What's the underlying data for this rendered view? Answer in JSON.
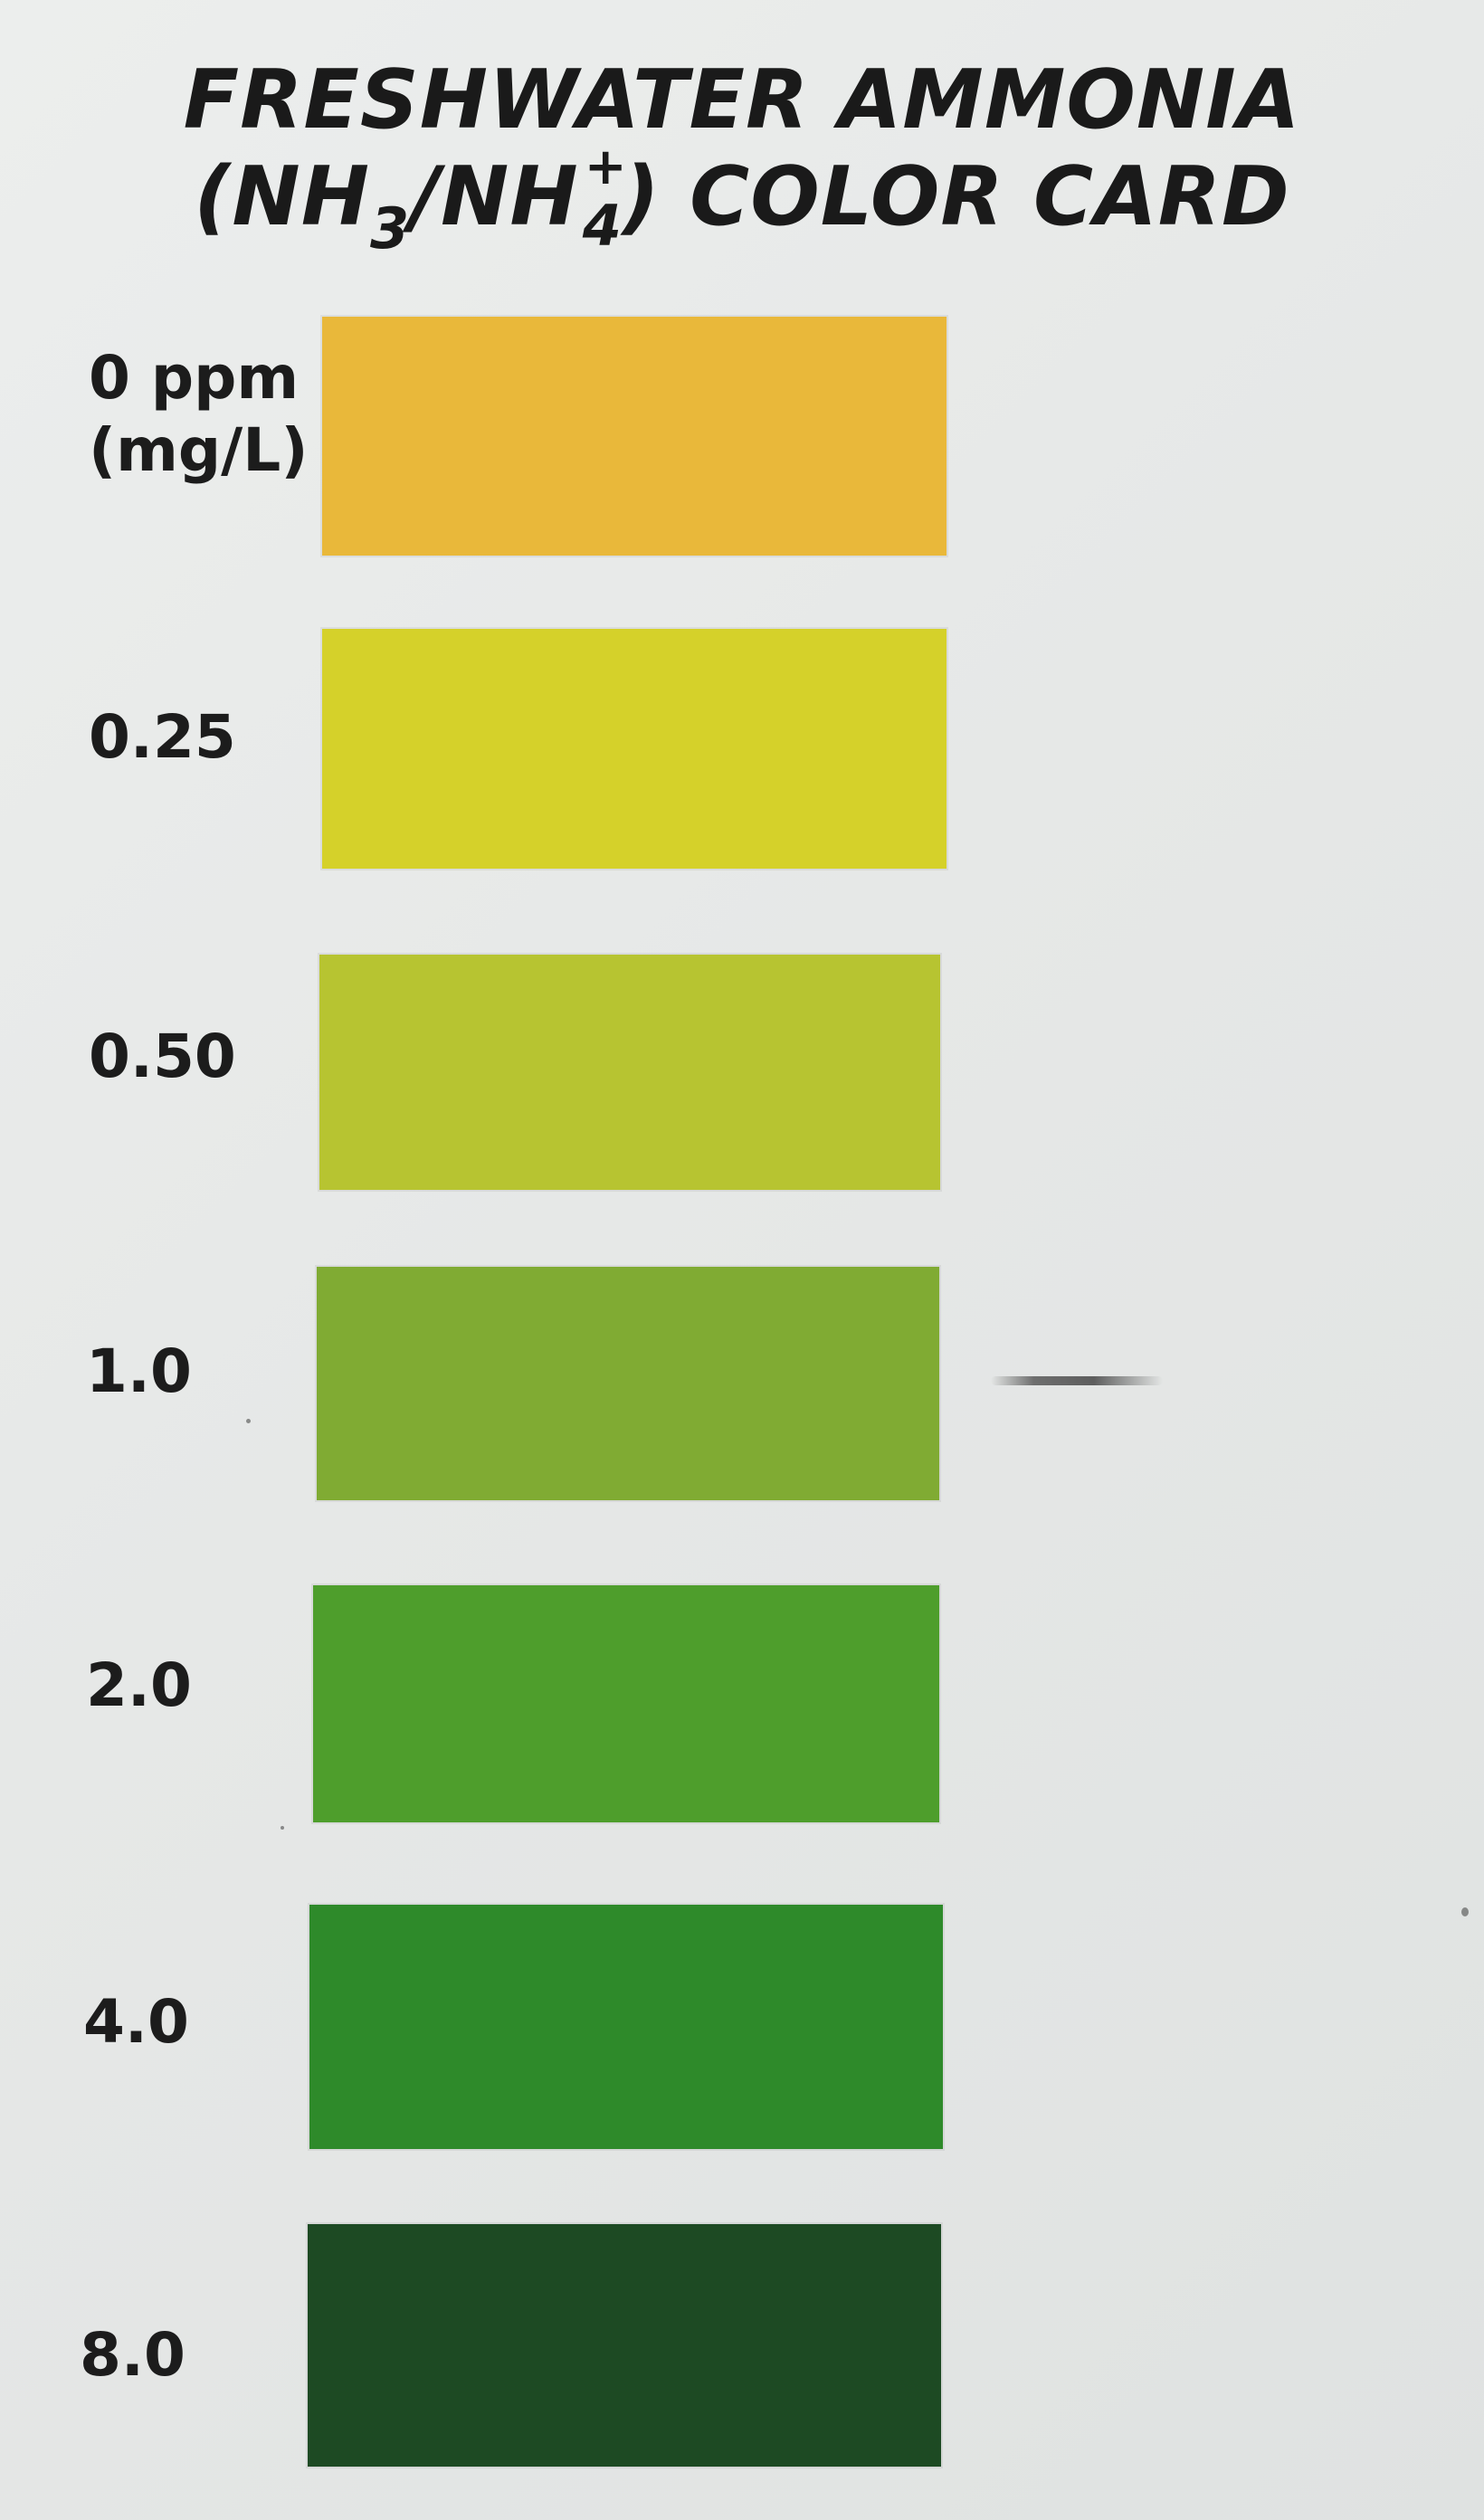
{
  "title": {
    "line1": "FRESHWATER AMMONIA",
    "line2": {
      "open": "(NH",
      "sub3": "3",
      "slash": "/NH",
      "charge": "+",
      "sub4": "4",
      "close": ") COLOR CARD"
    }
  },
  "scale": [
    {
      "label_line1": "0 ppm",
      "label_line2": "(mg/L)",
      "value_ppm": 0,
      "color": "#e9b83a"
    },
    {
      "label_line1": "0.25",
      "label_line2": "",
      "value_ppm": 0.25,
      "color": "#d5d12a"
    },
    {
      "label_line1": "0.50",
      "label_line2": "",
      "value_ppm": 0.5,
      "color": "#b7c431"
    },
    {
      "label_line1": "1.0",
      "label_line2": "",
      "value_ppm": 1.0,
      "color": "#80ab33"
    },
    {
      "label_line1": "2.0",
      "label_line2": "",
      "value_ppm": 2.0,
      "color": "#4e9e2c"
    },
    {
      "label_line1": "4.0",
      "label_line2": "",
      "value_ppm": 4.0,
      "color": "#2e8a2a"
    },
    {
      "label_line1": "8.0",
      "label_line2": "",
      "value_ppm": 8.0,
      "color": "#1d4a23"
    }
  ]
}
